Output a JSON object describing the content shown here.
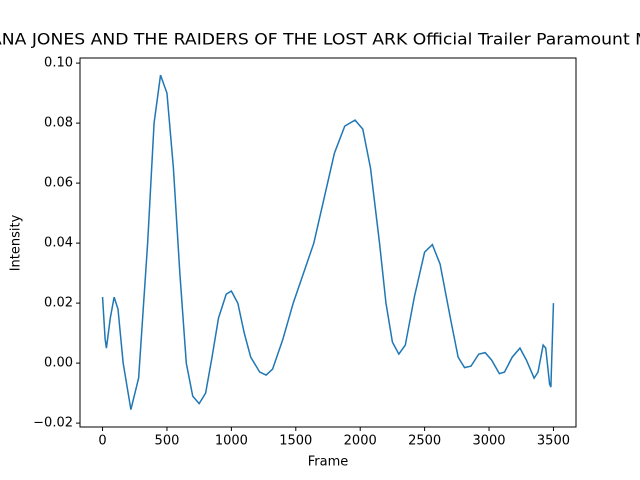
{
  "chart_data": {
    "type": "line",
    "title": "ANA JONES AND THE RAIDERS OF THE LOST ARK  Official Trailer  Paramount M",
    "x_label": "Frame",
    "y_label": "Intensity",
    "x": [
      0,
      20,
      30,
      60,
      90,
      120,
      160,
      220,
      280,
      350,
      400,
      450,
      500,
      550,
      600,
      650,
      700,
      750,
      800,
      850,
      900,
      960,
      1000,
      1050,
      1100,
      1150,
      1220,
      1270,
      1320,
      1400,
      1480,
      1560,
      1640,
      1720,
      1800,
      1880,
      1960,
      2020,
      2080,
      2150,
      2200,
      2250,
      2300,
      2350,
      2420,
      2500,
      2560,
      2620,
      2700,
      2760,
      2810,
      2860,
      2920,
      2970,
      3020,
      3080,
      3120,
      3180,
      3240,
      3290,
      3350,
      3380,
      3420,
      3440,
      3470,
      3480,
      3500
    ],
    "series": [
      {
        "name": "Intensity",
        "color": "#1f77b4",
        "values": [
          0.022,
          0.008,
          0.005,
          0.015,
          0.022,
          0.018,
          0.0,
          -0.0155,
          -0.005,
          0.04,
          0.08,
          0.096,
          0.09,
          0.065,
          0.03,
          0.0,
          -0.011,
          -0.0135,
          -0.01,
          0.002,
          0.015,
          0.023,
          0.024,
          0.02,
          0.01,
          0.002,
          -0.003,
          -0.004,
          -0.002,
          0.008,
          0.02,
          0.03,
          0.04,
          0.055,
          0.07,
          0.079,
          0.081,
          0.078,
          0.065,
          0.04,
          0.02,
          0.007,
          0.003,
          0.006,
          0.022,
          0.037,
          0.0395,
          0.033,
          0.015,
          0.002,
          -0.0015,
          -0.001,
          0.003,
          0.0035,
          0.001,
          -0.0035,
          -0.003,
          0.002,
          0.005,
          0.001,
          -0.005,
          -0.003,
          0.006,
          0.005,
          -0.007,
          -0.008,
          0.02
        ]
      }
    ],
    "xlim": [
      -175,
      3675
    ],
    "xticks": [
      0,
      500,
      1000,
      1500,
      2000,
      2500,
      3000,
      3500
    ],
    "ylim": [
      -0.0213,
      0.1017
    ],
    "yticks": [
      {
        "value": -0.02,
        "label": "−0.02"
      },
      {
        "value": 0,
        "label": "0.00"
      },
      {
        "value": 0.02,
        "label": "0.02"
      },
      {
        "value": 0.04,
        "label": "0.04"
      },
      {
        "value": 0.06,
        "label": "0.06"
      },
      {
        "value": 0.08,
        "label": "0.08"
      },
      {
        "value": 0.1,
        "label": "0.10"
      }
    ],
    "grid": false
  }
}
